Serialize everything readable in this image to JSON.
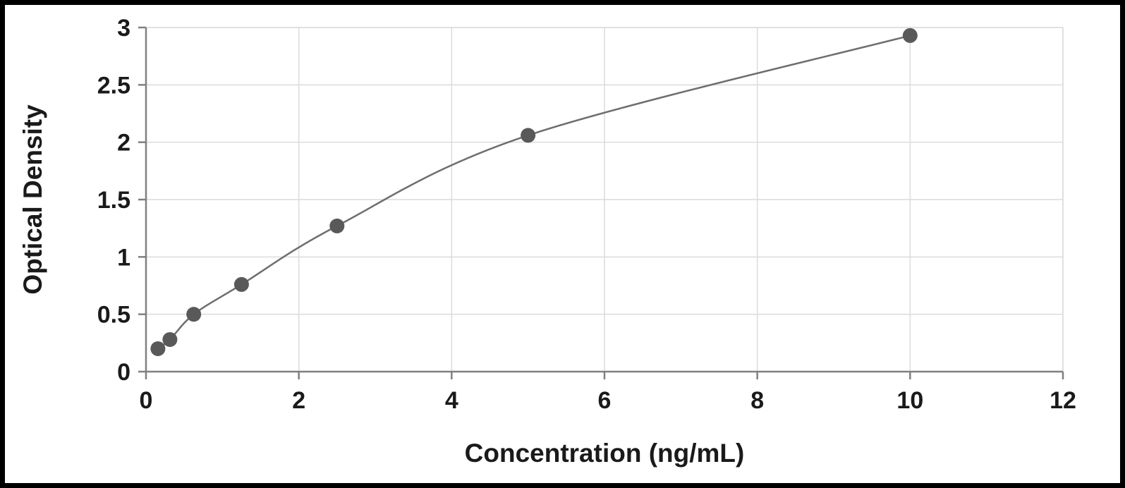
{
  "chart_data": {
    "type": "scatter",
    "title": "",
    "xlabel": "Concentration (ng/mL)",
    "ylabel": "Optical Density",
    "x": [
      0.156,
      0.313,
      0.625,
      1.25,
      2.5,
      5,
      10
    ],
    "y": [
      0.2,
      0.28,
      0.5,
      0.76,
      1.27,
      2.06,
      2.93
    ],
    "xlim": [
      0,
      12
    ],
    "ylim": [
      0,
      3
    ],
    "x_ticks": [
      0,
      2,
      4,
      6,
      8,
      10,
      12
    ],
    "y_ticks": [
      0,
      0.5,
      1,
      1.5,
      2,
      2.5,
      3
    ],
    "grid": true,
    "legend": false,
    "line_color": "#6e6e6e",
    "marker_color": "#595959",
    "grid_color": "#dcdcdc",
    "axis_color": "#808080",
    "frame_color": "#000000"
  }
}
